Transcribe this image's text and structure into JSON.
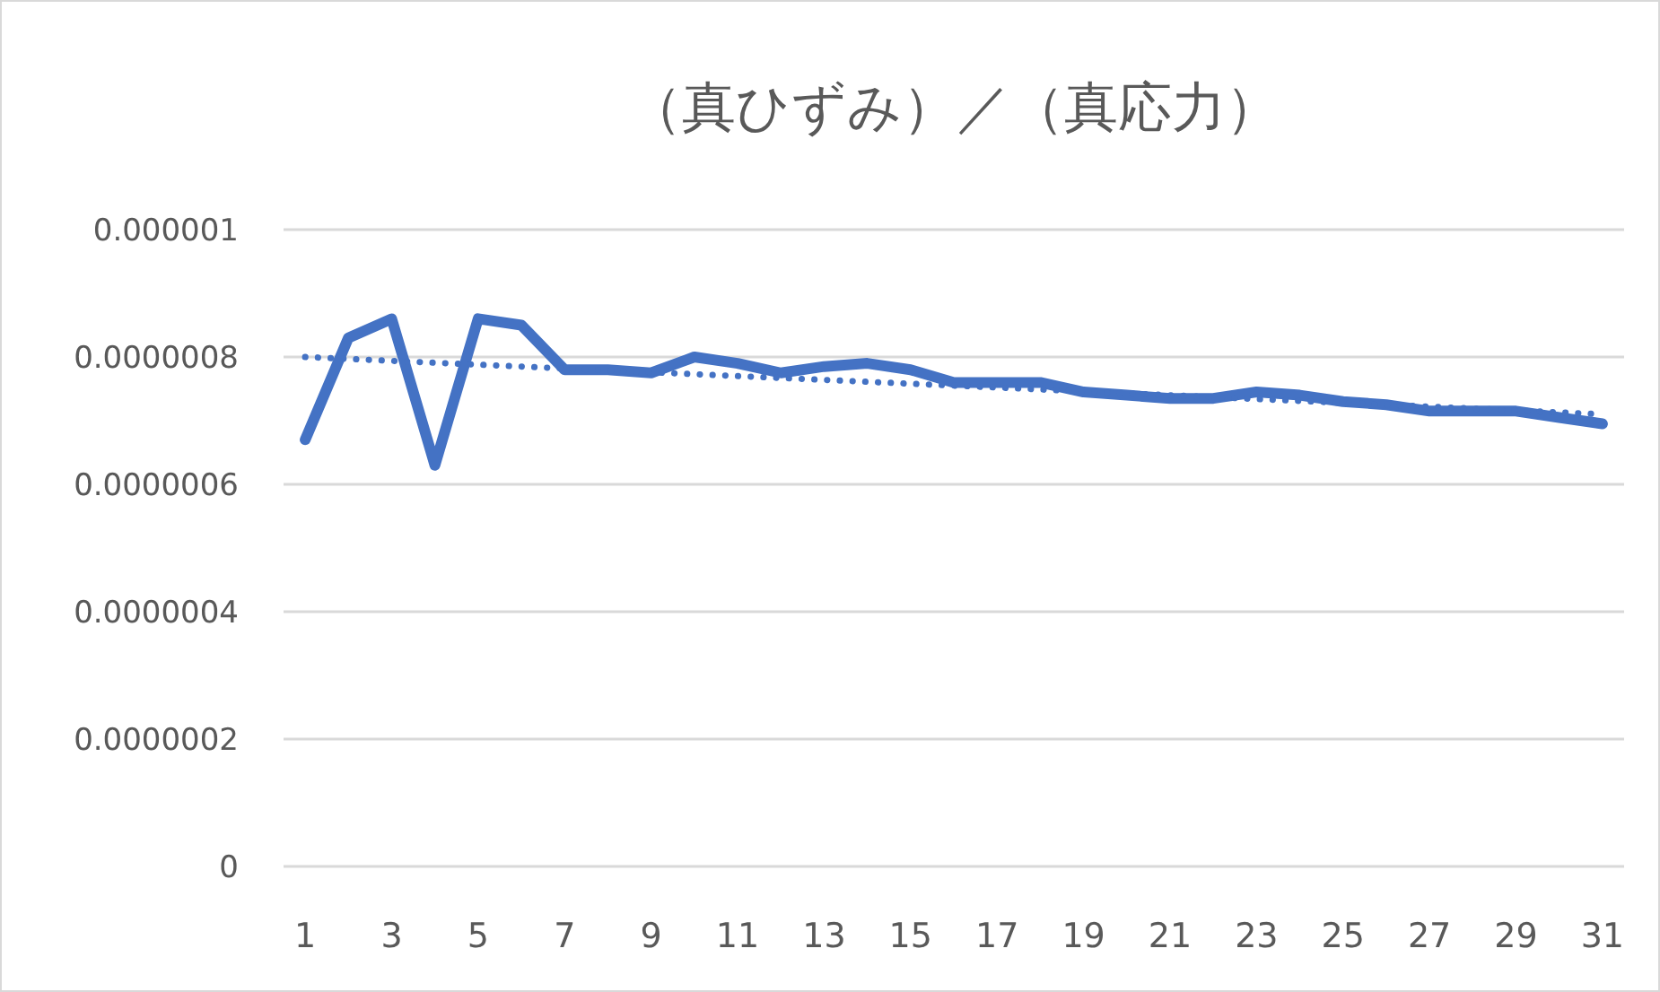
{
  "chart_data": {
    "type": "line",
    "title": "（真ひずみ）／（真応力）",
    "x": [
      1,
      2,
      3,
      4,
      5,
      6,
      7,
      8,
      9,
      10,
      11,
      12,
      13,
      14,
      15,
      16,
      17,
      18,
      19,
      20,
      21,
      22,
      23,
      24,
      25,
      26,
      27,
      28,
      29,
      30,
      31
    ],
    "series": [
      {
        "color": "#4472c4",
        "line_style": "solid",
        "values": [
          6.7e-07,
          8.3e-07,
          8.6e-07,
          6.3e-07,
          8.6e-07,
          8.5e-07,
          7.8e-07,
          7.8e-07,
          7.75e-07,
          8e-07,
          7.9e-07,
          7.75e-07,
          7.85e-07,
          7.9e-07,
          7.8e-07,
          7.6e-07,
          7.6e-07,
          7.6e-07,
          7.45e-07,
          7.4e-07,
          7.35e-07,
          7.35e-07,
          7.45e-07,
          7.4e-07,
          7.3e-07,
          7.25e-07,
          7.15e-07,
          7.15e-07,
          7.15e-07,
          7.05e-07,
          6.95e-07
        ]
      },
      {
        "type": "line",
        "color": "#4472c4",
        "line_style": "dotted",
        "x": [
          1,
          31
        ],
        "values": [
          8e-07,
          7.1e-07
        ]
      }
    ],
    "xlim": [
      0.5,
      31.5
    ],
    "xticks": [
      1,
      3,
      5,
      7,
      9,
      11,
      13,
      15,
      17,
      19,
      21,
      23,
      25,
      27,
      29,
      31
    ],
    "ylim": [
      0,
      1e-06
    ],
    "yticks": [
      {
        "value": 0,
        "label": "0"
      },
      {
        "value": 2e-07,
        "label": "0.0000002"
      },
      {
        "value": 4e-07,
        "label": "0.0000004"
      },
      {
        "value": 6e-07,
        "label": "0.0000006"
      },
      {
        "value": 8e-07,
        "label": "0.0000008"
      },
      {
        "value": 1e-06,
        "label": "0.000001"
      }
    ],
    "grid": "y",
    "marker": "none"
  }
}
